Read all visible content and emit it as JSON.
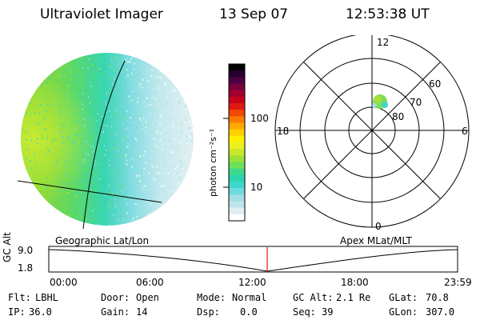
{
  "header": {
    "instrument": "Ultraviolet Imager",
    "date": "13 Sep 07",
    "time": "12:53:38 UT"
  },
  "colorbar": {
    "unit_label": "photon cm⁻²s⁻¹",
    "tick_labels": [
      "100",
      "10"
    ],
    "colors": [
      "#ffffff",
      "#dfeef0",
      "#bfe5ea",
      "#9fdfe6",
      "#6fdadd",
      "#3fd6cc",
      "#2ad6b0",
      "#3fd88a",
      "#6ee05a",
      "#9be23a",
      "#c8e82a",
      "#eaf020",
      "#fff000",
      "#ffd000",
      "#ffa800",
      "#ff7a00",
      "#f24a00",
      "#e01a10",
      "#c8001c",
      "#a00030",
      "#78003c",
      "#4c0044",
      "#280030",
      "#000000"
    ]
  },
  "polar": {
    "mlt_labels": {
      "top": "12",
      "left": "18",
      "right": "6",
      "bottom": "0"
    },
    "lat_labels": [
      "60",
      "70",
      "80"
    ]
  },
  "timeline": {
    "left_title": "Geographic Lat/Lon",
    "right_title": "Apex MLat/MLT",
    "axis_label": "GC Alt",
    "y_ticks": [
      "9.0",
      "1.8"
    ],
    "x_ticks": [
      "00:00",
      "06:00",
      "12:00",
      "18:00",
      "23:59"
    ],
    "current_time": "12:53"
  },
  "status": {
    "flt": {
      "label": "Flt:",
      "value": "LBHL"
    },
    "ip": {
      "label": "IP:",
      "value": "36.0"
    },
    "door": {
      "label": "Door:",
      "value": "Open"
    },
    "gain": {
      "label": "Gain:",
      "value": "14"
    },
    "mode": {
      "label": "Mode:",
      "value": "Normal"
    },
    "dsp": {
      "label": "Dsp:",
      "value": "0.0"
    },
    "gcalt": {
      "label": "GC Alt:",
      "value": "2.1 Re"
    },
    "seq": {
      "label": "Seq:",
      "value": "39"
    },
    "glat": {
      "label": "GLat:",
      "value": "70.8"
    },
    "glon": {
      "label": "GLon:",
      "value": "307.0"
    }
  }
}
